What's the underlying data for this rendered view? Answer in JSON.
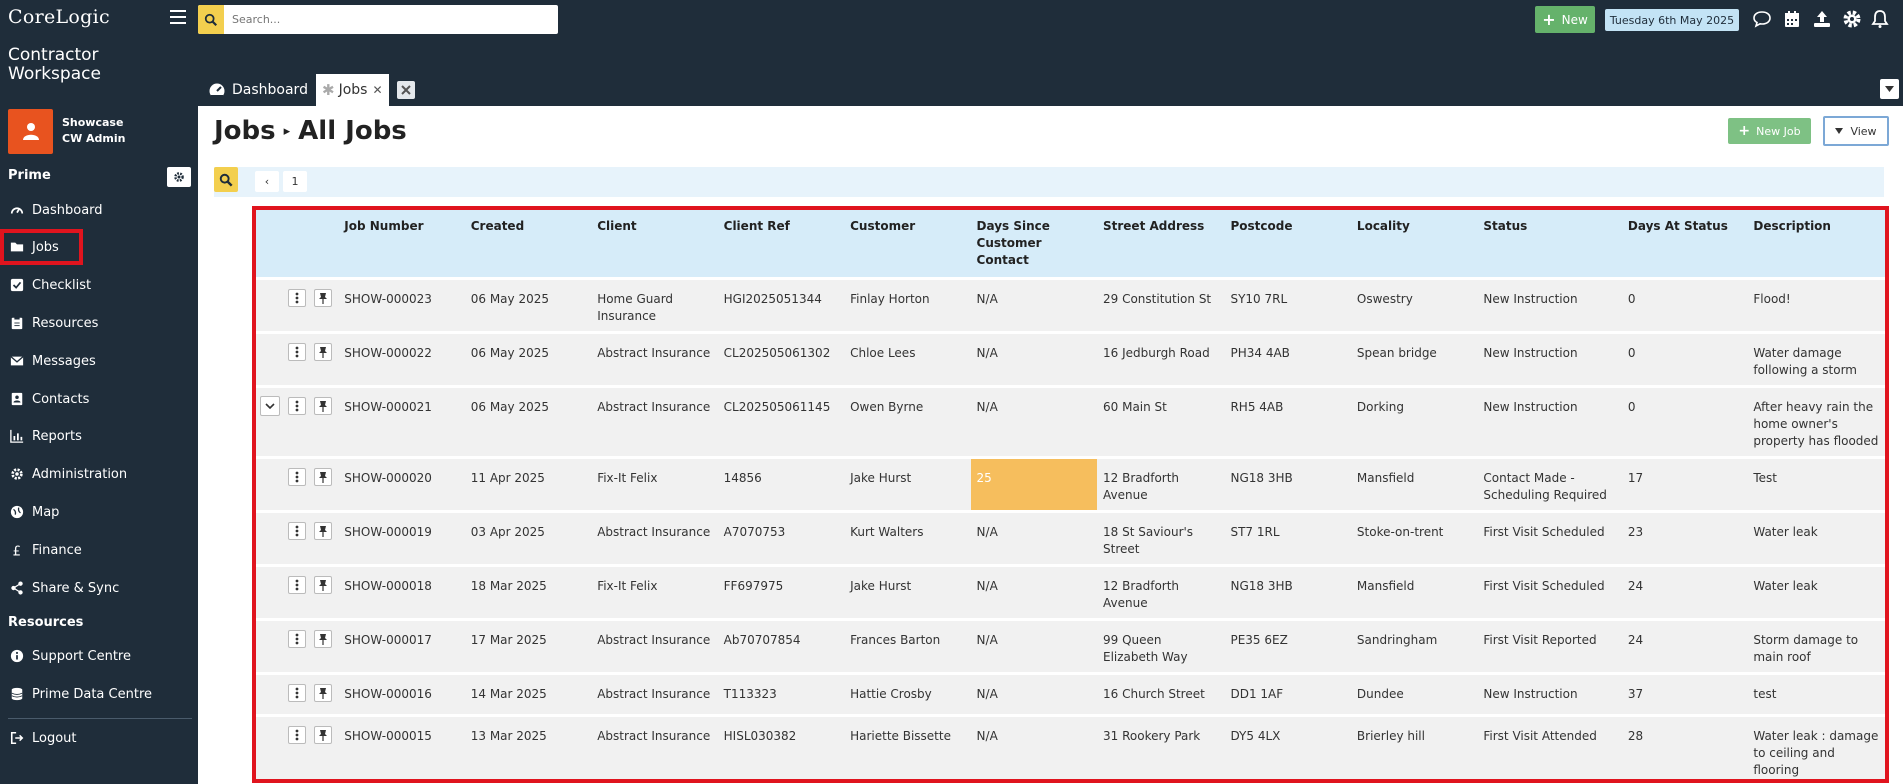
{
  "brand": {
    "logo_top": "CoreLogic",
    "logo_product_line1": "Contractor",
    "logo_product_line2": "Workspace"
  },
  "user": {
    "org": "Showcase",
    "name": "CW Admin"
  },
  "sidebar": {
    "section_prime": "Prime",
    "section_resources": "Resources",
    "items": [
      {
        "label": "Dashboard",
        "icon": "gauge-icon"
      },
      {
        "label": "Jobs",
        "icon": "folder-icon"
      },
      {
        "label": "Checklist",
        "icon": "checkbox-icon"
      },
      {
        "label": "Resources",
        "icon": "clipboard-icon"
      },
      {
        "label": "Messages",
        "icon": "envelope-icon"
      },
      {
        "label": "Contacts",
        "icon": "address-book-icon"
      },
      {
        "label": "Reports",
        "icon": "bar-chart-icon"
      },
      {
        "label": "Administration",
        "icon": "gear-icon"
      },
      {
        "label": "Map",
        "icon": "globe-icon"
      },
      {
        "label": "Finance",
        "icon": "pound-icon"
      },
      {
        "label": "Share & Sync",
        "icon": "share-icon"
      }
    ],
    "resource_items": [
      {
        "label": "Support Centre",
        "icon": "info-icon"
      },
      {
        "label": "Prime Data Centre",
        "icon": "database-icon"
      }
    ],
    "logout": "Logout"
  },
  "topbar": {
    "search_placeholder": "Search...",
    "new_label": "New",
    "date": "Tuesday 6th May 2025"
  },
  "tabs": [
    {
      "label": "Dashboard"
    },
    {
      "label": "Jobs"
    }
  ],
  "page": {
    "title": "Jobs",
    "subtitle": "All Jobs",
    "new_job_label": "New Job",
    "view_label": "View",
    "current_page": "1"
  },
  "table": {
    "columns": [
      "Job Number",
      "Created",
      "Client",
      "Client Ref",
      "Customer",
      "Days Since Customer Contact",
      "Street Address",
      "Postcode",
      "Locality",
      "Status",
      "Days At Status",
      "Description"
    ],
    "rows": [
      {
        "job": "SHOW-000023",
        "created": "06 May 2025",
        "client": "Home Guard Insurance",
        "ref": "HGI2025051344",
        "customer": "Finlay Horton",
        "days_contact": "N/A",
        "street": "29 Constitution St",
        "postcode": "SY10 7RL",
        "locality": "Oswestry",
        "status": "New Instruction",
        "days_status": "0",
        "description": "Flood!"
      },
      {
        "job": "SHOW-000022",
        "created": "06 May 2025",
        "client": "Abstract Insurance",
        "ref": "CL202505061302",
        "customer": "Chloe Lees",
        "days_contact": "N/A",
        "street": "16 Jedburgh Road",
        "postcode": "PH34 4AB",
        "locality": "Spean bridge",
        "status": "New Instruction",
        "days_status": "0",
        "description": "Water damage following a storm"
      },
      {
        "job": "SHOW-000021",
        "created": "06 May 2025",
        "client": "Abstract Insurance",
        "ref": "CL202505061145",
        "customer": "Owen Byrne",
        "days_contact": "N/A",
        "street": "60 Main St",
        "postcode": "RH5 4AB",
        "locality": "Dorking",
        "status": "New Instruction",
        "days_status": "0",
        "description": "After heavy rain the home owner's property has flooded"
      },
      {
        "job": "SHOW-000020",
        "created": "11 Apr 2025",
        "client": "Fix-It Felix",
        "ref": "14856",
        "customer": "Jake Hurst",
        "days_contact": "25",
        "street": "12 Bradforth Avenue",
        "postcode": "NG18 3HB",
        "locality": "Mansfield",
        "status": "Contact Made - Scheduling Required",
        "days_status": "17",
        "description": "Test"
      },
      {
        "job": "SHOW-000019",
        "created": "03 Apr 2025",
        "client": "Abstract Insurance",
        "ref": "A7070753",
        "customer": "Kurt Walters",
        "days_contact": "N/A",
        "street": "18 St Saviour's Street",
        "postcode": "ST7 1RL",
        "locality": "Stoke-on-trent",
        "status": "First Visit Scheduled",
        "days_status": "23",
        "description": "Water leak"
      },
      {
        "job": "SHOW-000018",
        "created": "18 Mar 2025",
        "client": "Fix-It Felix",
        "ref": "FF697975",
        "customer": "Jake Hurst",
        "days_contact": "N/A",
        "street": "12 Bradforth Avenue",
        "postcode": "NG18 3HB",
        "locality": "Mansfield",
        "status": "First Visit Scheduled",
        "days_status": "24",
        "description": "Water leak"
      },
      {
        "job": "SHOW-000017",
        "created": "17 Mar 2025",
        "client": "Abstract Insurance",
        "ref": "Ab70707854",
        "customer": "Frances Barton",
        "days_contact": "N/A",
        "street": "99 Queen Elizabeth Way",
        "postcode": "PE35 6EZ",
        "locality": "Sandringham",
        "status": "First Visit Reported",
        "days_status": "24",
        "description": "Storm damage to main roof"
      },
      {
        "job": "SHOW-000016",
        "created": "14 Mar 2025",
        "client": "Abstract Insurance",
        "ref": "T113323",
        "customer": "Hattie Crosby",
        "days_contact": "N/A",
        "street": "16 Church Street",
        "postcode": "DD1 1AF",
        "locality": "Dundee",
        "status": "New Instruction",
        "days_status": "37",
        "description": "test"
      },
      {
        "job": "SHOW-000015",
        "created": "13 Mar 2025",
        "client": "Abstract Insurance",
        "ref": "HISL030382",
        "customer": "Hariette Bissette",
        "days_contact": "N/A",
        "street": "31 Rookery Park",
        "postcode": "DY5 4LX",
        "locality": "Brierley hill",
        "status": "First Visit Attended",
        "days_status": "28",
        "description": "Water leak : damage to ceiling and flooring"
      }
    ]
  },
  "colors": {
    "sidebar_bg": "#1f2d3a",
    "accent_green": "#65b26b",
    "highlight_red": "#e0141e",
    "warn_orange": "#f6be5d",
    "search_yellow": "#f3cf4e"
  }
}
